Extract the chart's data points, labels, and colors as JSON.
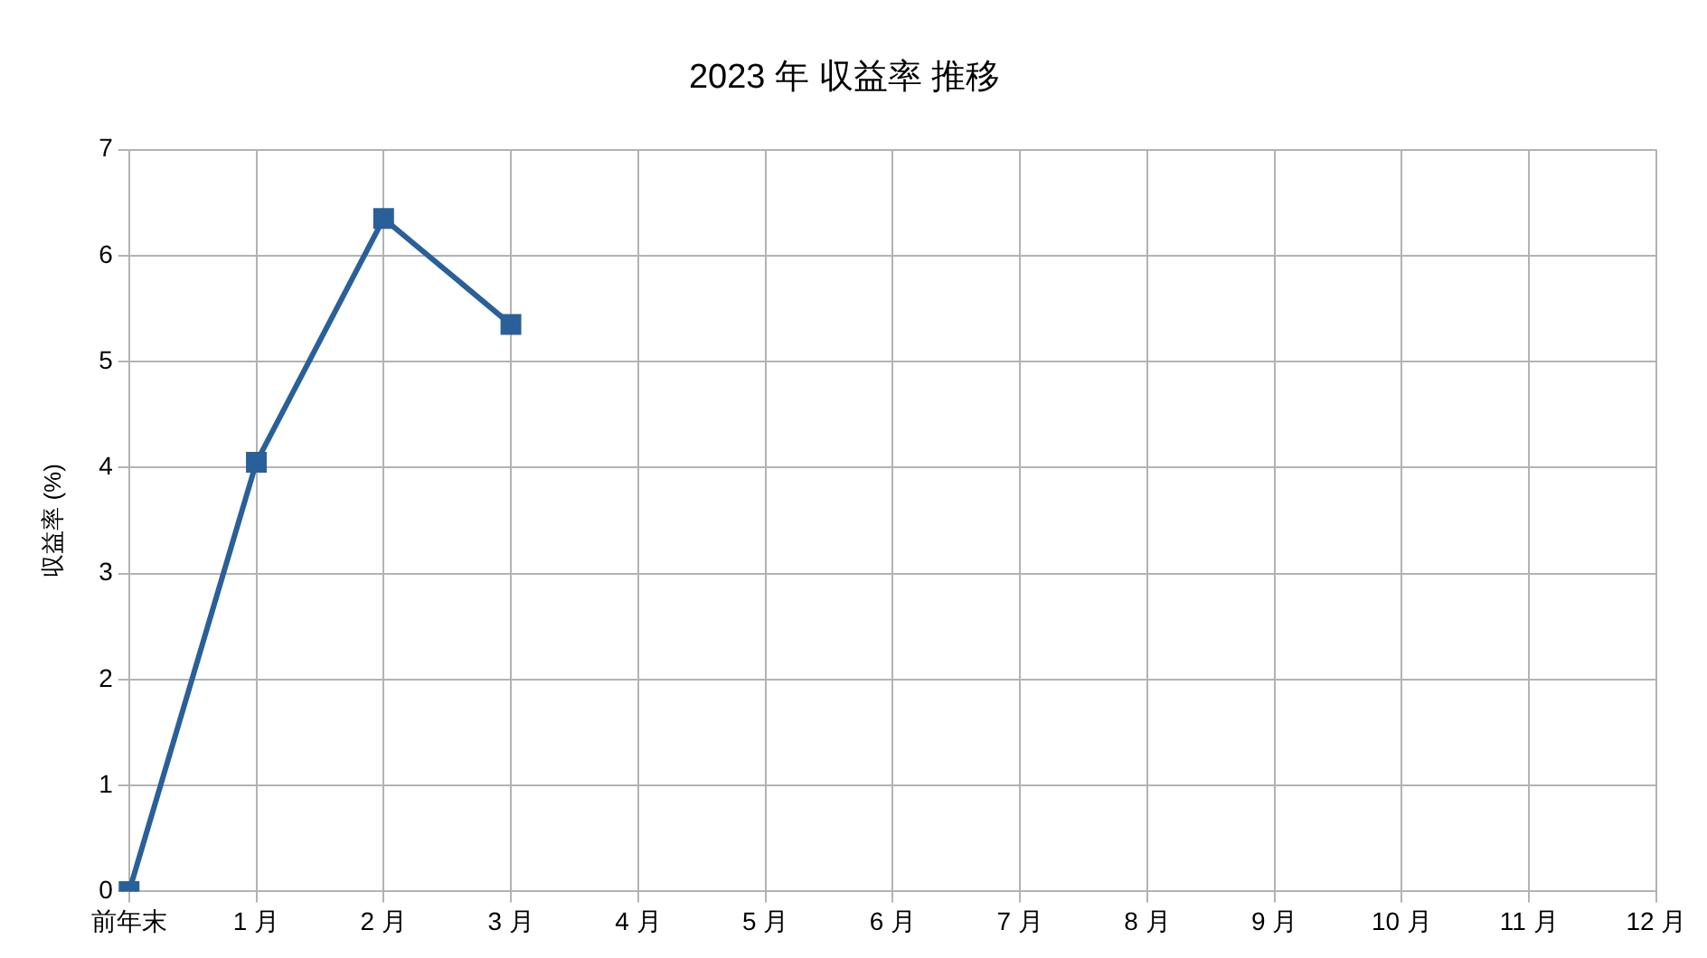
{
  "chart_data": {
    "type": "line",
    "title": "2023 年 収益率 推移",
    "ylabel": "収益率 (%)",
    "categories": [
      "前年末",
      "1 月",
      "2 月",
      "3 月",
      "4 月",
      "5 月",
      "6 月",
      "7 月",
      "8 月",
      "9 月",
      "10 月",
      "11 月",
      "12 月"
    ],
    "series": [
      {
        "color": "#2a6099",
        "values": [
          0,
          4.05,
          6.35,
          5.35,
          null,
          null,
          null,
          null,
          null,
          null,
          null,
          null,
          null
        ]
      }
    ],
    "ylim": [
      0,
      7
    ],
    "yticks": [
      0,
      1,
      2,
      3,
      4,
      5,
      6,
      7
    ],
    "grid": true,
    "marker": "square",
    "line_style": "solid",
    "legend": false
  }
}
